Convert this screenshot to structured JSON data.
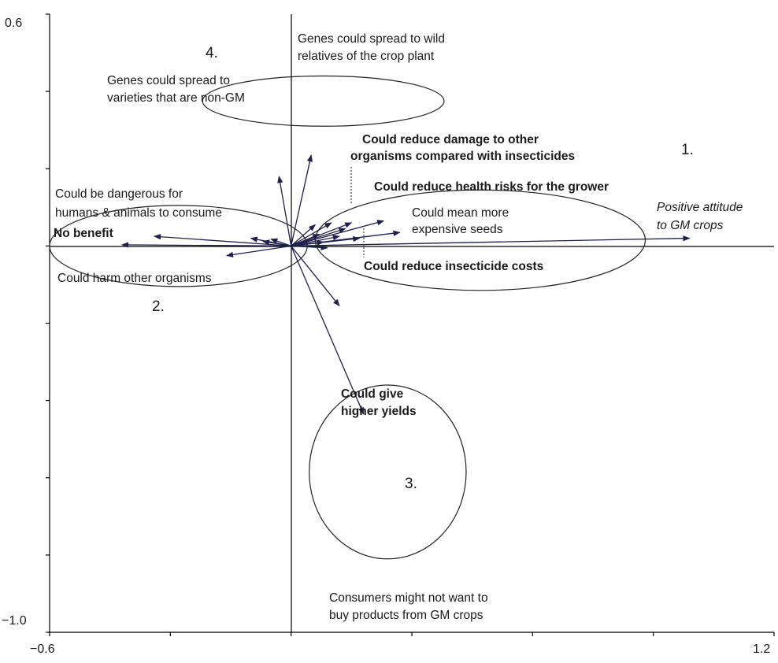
{
  "chart_data": {
    "type": "scatter",
    "title": "",
    "xlabel": "",
    "ylabel": "",
    "xlim": [
      -0.6,
      1.2
    ],
    "ylim": [
      -1.0,
      0.6
    ],
    "x_tick_labels": [
      "−0.6",
      "1.2"
    ],
    "y_tick_labels": [
      "0.6",
      "−1.0"
    ],
    "grid": false,
    "arrow_color": "#1f1f4a",
    "vectors": [
      {
        "label": "Positive attitude to GM crops",
        "x": 0.99,
        "y": 0.02
      },
      {
        "label": "Could reduce damage to other organisms compared with insecticides",
        "x": 0.15,
        "y": 0.06
      },
      {
        "label": "Could reduce health risks for the grower",
        "x": 0.23,
        "y": 0.065
      },
      {
        "label": "Could mean more expensive seeds",
        "x": 0.27,
        "y": 0.035
      },
      {
        "label": "Could reduce insecticide costs",
        "x": 0.09,
        "y": -0.005
      },
      {
        "label": "Could be dangerous for humans & animals to consume",
        "x": -0.34,
        "y": 0.025
      },
      {
        "label": "No benefit",
        "x": -0.42,
        "y": 0.003
      },
      {
        "label": "Could harm other organisms",
        "x": -0.16,
        "y": -0.025
      },
      {
        "label": "Genes could spread to varieties that are non-GM",
        "x": -0.03,
        "y": 0.18
      },
      {
        "label": "Genes could spread to wild relatives of the crop plant",
        "x": 0.05,
        "y": 0.235
      },
      {
        "label": "Could give higher yields",
        "x": 0.12,
        "y": -0.155
      },
      {
        "label": "Consumers might not want to buy products from GM crops",
        "x": 0.18,
        "y": -0.435
      },
      {
        "label": "",
        "x": 0.06,
        "y": 0.055
      },
      {
        "label": "",
        "x": 0.1,
        "y": 0.06
      },
      {
        "label": "",
        "x": 0.135,
        "y": 0.045
      },
      {
        "label": "",
        "x": 0.07,
        "y": 0.03
      },
      {
        "label": "",
        "x": 0.12,
        "y": 0.025
      },
      {
        "label": "",
        "x": 0.17,
        "y": 0.02
      },
      {
        "label": "",
        "x": -0.1,
        "y": 0.02
      },
      {
        "label": "",
        "x": -0.07,
        "y": 0.012
      },
      {
        "label": "",
        "x": -0.05,
        "y": 0.018
      },
      {
        "label": "",
        "x": 0.08,
        "y": 0.01
      }
    ],
    "groups": [
      {
        "label": "1.",
        "cx": 0.47,
        "cy": 0.015,
        "rx": 0.41,
        "ry": 0.13
      },
      {
        "label": "2.",
        "cx": -0.28,
        "cy": 0.0,
        "rx": 0.32,
        "ry": 0.105
      },
      {
        "label": "3.",
        "cx": 0.24,
        "cy": -0.585,
        "rx": 0.195,
        "ry": 0.225
      },
      {
        "label": "4.",
        "cx": 0.08,
        "cy": 0.375,
        "rx": 0.3,
        "ry": 0.065
      }
    ],
    "annotations": [
      {
        "text": "Positive attitude",
        "style": "italic"
      },
      {
        "text": "to GM crops",
        "style": "italic"
      },
      {
        "text": "Could reduce damage to other",
        "style": "bold"
      },
      {
        "text": "organisms compared with insecticides",
        "style": "bold"
      },
      {
        "text": "Could reduce health risks for the grower",
        "style": "bold"
      },
      {
        "text": "Could mean more",
        "style": "normal"
      },
      {
        "text": "expensive seeds",
        "style": "normal"
      },
      {
        "text": "Could reduce insecticide costs",
        "style": "bold"
      },
      {
        "text": "Could be dangerous for",
        "style": "normal"
      },
      {
        "text": "humans & animals to consume",
        "style": "normal"
      },
      {
        "text": "No benefit",
        "style": "bold"
      },
      {
        "text": "Could harm other organisms",
        "style": "normal"
      },
      {
        "text": "Genes could spread to",
        "style": "normal"
      },
      {
        "text": "varieties that are non-GM",
        "style": "normal"
      },
      {
        "text": "Genes could spread to wild",
        "style": "normal"
      },
      {
        "text": "relatives of the crop plant",
        "style": "normal"
      },
      {
        "text": "Could give",
        "style": "bold"
      },
      {
        "text": "higher yields",
        "style": "bold"
      },
      {
        "text": "Consumers might not want to",
        "style": "normal"
      },
      {
        "text": "buy products from GM crops",
        "style": "normal"
      }
    ]
  }
}
